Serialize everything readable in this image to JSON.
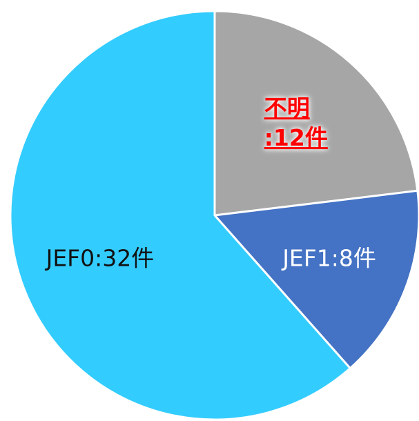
{
  "chart_data": {
    "type": "pie",
    "categories": [
      "不明",
      "JEF1",
      "JEF0"
    ],
    "values": [
      12,
      8,
      32
    ],
    "value_labels": [
      ":12件",
      ":8件",
      ":32件"
    ],
    "colors": [
      "#a6a6a6",
      "#4472c4",
      "#33ccff"
    ]
  }
}
